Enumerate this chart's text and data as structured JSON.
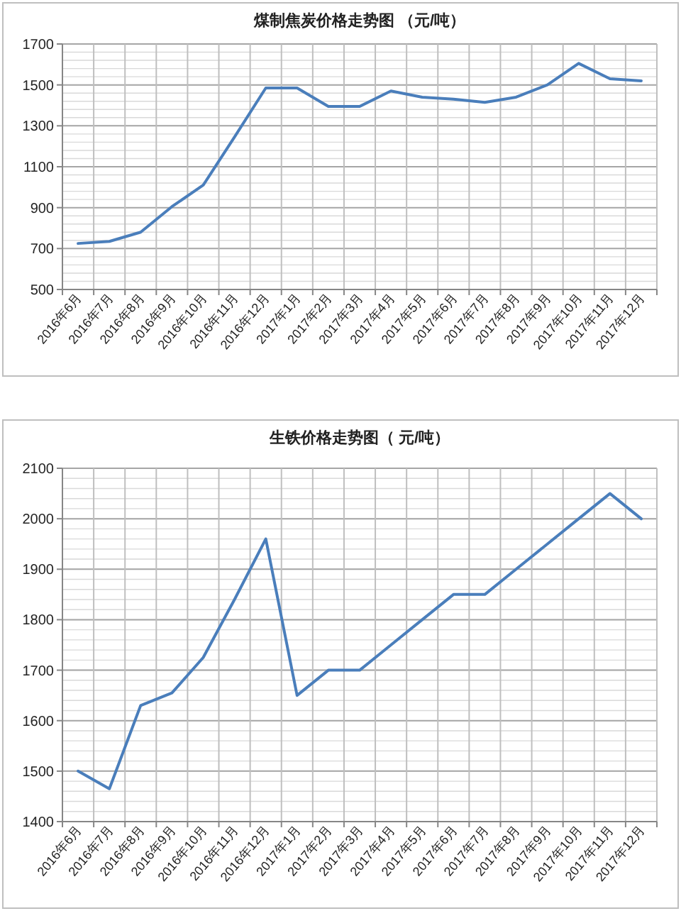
{
  "chart_data": [
    {
      "type": "line",
      "title": "煤制焦炭价格走势图 （元/吨）",
      "categories": [
        "2016年6月",
        "2016年7月",
        "2016年8月",
        "2016年9月",
        "2016年10月",
        "2016年11月",
        "2016年12月",
        "2017年1月",
        "2017年2月",
        "2017年3月",
        "2017年4月",
        "2017年5月",
        "2017年6月",
        "2017年7月",
        "2017年8月",
        "2017年9月",
        "2017年10月",
        "2017年11月",
        "2017年12月"
      ],
      "series": [
        {
          "color": "#4a7ebb",
          "values": [
            725,
            735,
            780,
            905,
            1010,
            1245,
            1485,
            1485,
            1395,
            1395,
            1470,
            1440,
            1430,
            1415,
            1440,
            1500,
            1605,
            1530,
            1520
          ]
        }
      ],
      "ylim": [
        500,
        1700
      ],
      "yticks": [
        500,
        700,
        900,
        1100,
        1300,
        1500,
        1700
      ],
      "grid": true
    },
    {
      "type": "line",
      "title": "生铁价格走势图（ 元/吨）",
      "categories": [
        "2016年6月",
        "2016年7月",
        "2016年8月",
        "2016年9月",
        "2016年10月",
        "2016年11月",
        "2016年12月",
        "2017年1月",
        "2017年2月",
        "2017年3月",
        "2017年4月",
        "2017年5月",
        "2017年6月",
        "2017年7月",
        "2017年8月",
        "2017年9月",
        "2017年10月",
        "2017年11月",
        "2017年12月"
      ],
      "series": [
        {
          "color": "#4a7ebb",
          "values": [
            1500,
            1465,
            1630,
            1655,
            1725,
            1840,
            1960,
            1650,
            1700,
            1700,
            1750,
            1800,
            1850,
            1850,
            1900,
            1950,
            2000,
            2050,
            2000
          ]
        }
      ],
      "ylim": [
        1400,
        2100
      ],
      "yticks": [
        1400,
        1500,
        1600,
        1700,
        1800,
        1900,
        2000,
        2100
      ],
      "grid": true
    }
  ]
}
